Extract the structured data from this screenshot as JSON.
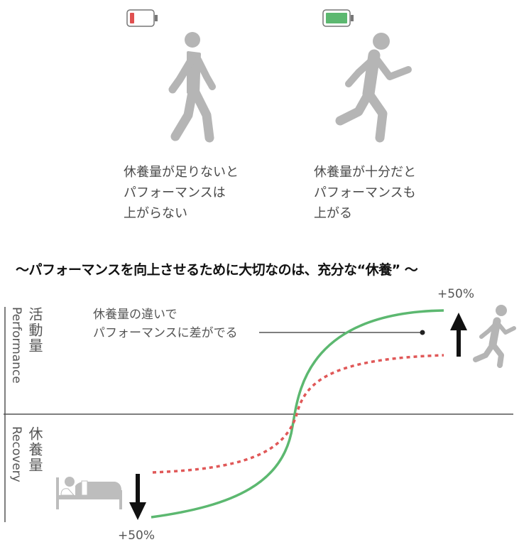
{
  "top": {
    "left": {
      "battery_icon": "battery-low-icon",
      "battery_color": "#e05050",
      "figure_icon": "walking-person-icon",
      "caption": [
        "休養量が足りないと",
        "パフォーマンスは",
        "上がらない"
      ]
    },
    "right": {
      "battery_icon": "battery-full-icon",
      "battery_color": "#5cb870",
      "figure_icon": "running-person-icon",
      "caption": [
        "休養量が十分だと",
        "パフォーマンスも",
        "上がる"
      ]
    }
  },
  "title": "～パフォーマンスを向上させるために大切なのは、充分な“休養” ～",
  "diagram": {
    "upper_axis_label_ja": "活動量",
    "upper_axis_label_en": "Performance",
    "lower_axis_label_ja": "休養量",
    "lower_axis_label_en": "Recovery",
    "annotation": [
      "休養量の違いで",
      "パフォーマンスに差がでる"
    ],
    "top_percent": "+50%",
    "bottom_percent": "+50%",
    "sufficient_rest_color": "#5cb870",
    "insufficient_rest_color": "#e05858",
    "icons": [
      "running-person-icon",
      "sleeping-in-bed-icon",
      "arrow-up-icon",
      "arrow-down-icon"
    ]
  }
}
